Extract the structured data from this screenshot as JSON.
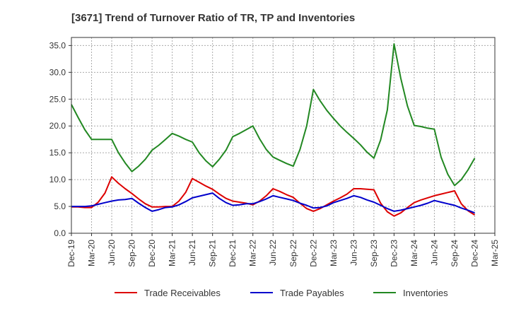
{
  "chart_data": {
    "type": "line",
    "title": "[3671]  Trend of Turnover Ratio of TR, TP and Inventories",
    "xlabel": "",
    "ylabel": "",
    "ylim": [
      0,
      36.5
    ],
    "y_ticks": [
      "0.0",
      "5.0",
      "10.0",
      "15.0",
      "20.0",
      "25.0",
      "30.0",
      "35.0"
    ],
    "x_ticks": [
      "Dec-19",
      "Mar-20",
      "Jun-20",
      "Sep-20",
      "Dec-20",
      "Mar-21",
      "Jun-21",
      "Sep-21",
      "Dec-21",
      "Mar-22",
      "Jun-22",
      "Sep-22",
      "Dec-22",
      "Mar-23",
      "Jun-23",
      "Sep-23",
      "Dec-23",
      "Mar-24",
      "Jun-24",
      "Sep-24",
      "Dec-24",
      "Mar-25"
    ],
    "grid": true,
    "legend_position": "bottom",
    "x": [
      "2019-12",
      "2020-01",
      "2020-02",
      "2020-03",
      "2020-04",
      "2020-05",
      "2020-06",
      "2020-07",
      "2020-08",
      "2020-09",
      "2020-10",
      "2020-11",
      "2020-12",
      "2021-01",
      "2021-02",
      "2021-03",
      "2021-04",
      "2021-05",
      "2021-06",
      "2021-07",
      "2021-08",
      "2021-09",
      "2021-10",
      "2021-11",
      "2021-12",
      "2022-01",
      "2022-02",
      "2022-03",
      "2022-04",
      "2022-05",
      "2022-06",
      "2022-07",
      "2022-08",
      "2022-09",
      "2022-10",
      "2022-11",
      "2022-12",
      "2023-01",
      "2023-02",
      "2023-03",
      "2023-04",
      "2023-05",
      "2023-06",
      "2023-07",
      "2023-08",
      "2023-09",
      "2023-10",
      "2023-11",
      "2023-12",
      "2024-01",
      "2024-02",
      "2024-03",
      "2024-04",
      "2024-05",
      "2024-06",
      "2024-07",
      "2024-08",
      "2024-09",
      "2024-10",
      "2024-11",
      "2024-12"
    ],
    "series": [
      {
        "name": "Trade Receivables",
        "color": "#dd0000",
        "values": [
          4.9,
          4.9,
          4.8,
          4.8,
          5.8,
          7.5,
          10.5,
          9.3,
          8.3,
          7.4,
          6.4,
          5.5,
          4.9,
          4.9,
          5.0,
          5.0,
          6.0,
          7.6,
          10.2,
          9.5,
          8.8,
          8.2,
          7.3,
          6.5,
          6.0,
          5.8,
          5.6,
          5.3,
          6.0,
          7.0,
          8.3,
          7.8,
          7.2,
          6.7,
          5.6,
          4.6,
          4.1,
          4.6,
          5.3,
          6.0,
          6.6,
          7.3,
          8.3,
          8.3,
          8.2,
          8.1,
          5.6,
          4.0,
          3.2,
          3.8,
          4.8,
          5.7,
          6.2,
          6.6,
          7.0,
          7.3,
          7.6,
          7.9,
          5.5,
          4.2,
          3.4
        ]
      },
      {
        "name": "Trade Payables",
        "color": "#0000cc",
        "values": [
          5.0,
          5.0,
          5.0,
          5.1,
          5.4,
          5.7,
          6.0,
          6.2,
          6.3,
          6.5,
          5.6,
          4.8,
          4.1,
          4.4,
          4.8,
          4.9,
          5.3,
          5.9,
          6.6,
          6.9,
          7.2,
          7.5,
          6.5,
          5.7,
          5.2,
          5.3,
          5.5,
          5.5,
          5.9,
          6.4,
          7.0,
          6.7,
          6.4,
          6.1,
          5.6,
          5.2,
          4.7,
          4.8,
          5.1,
          5.7,
          6.1,
          6.5,
          7.0,
          6.7,
          6.2,
          5.8,
          5.2,
          4.6,
          4.1,
          4.3,
          4.6,
          4.9,
          5.2,
          5.6,
          6.1,
          5.8,
          5.5,
          5.2,
          4.7,
          4.3,
          3.8
        ]
      },
      {
        "name": "Inventories",
        "color": "#228822",
        "values": [
          24.0,
          21.6,
          19.3,
          17.5,
          17.5,
          17.5,
          17.5,
          15.0,
          13.1,
          11.5,
          12.5,
          13.8,
          15.5,
          16.4,
          17.5,
          18.6,
          18.1,
          17.5,
          17.0,
          15.0,
          13.5,
          12.4,
          13.8,
          15.5,
          18.0,
          18.6,
          19.3,
          20.0,
          17.6,
          15.6,
          14.2,
          13.6,
          13.0,
          12.5,
          15.6,
          20.0,
          26.8,
          24.7,
          22.9,
          21.4,
          20.0,
          18.8,
          17.7,
          16.5,
          15.1,
          14.0,
          17.4,
          23.0,
          35.3,
          28.9,
          23.7,
          20.1,
          19.9,
          19.6,
          19.4,
          14.2,
          11.0,
          8.9,
          10.0,
          11.8,
          14.0
        ]
      }
    ]
  }
}
